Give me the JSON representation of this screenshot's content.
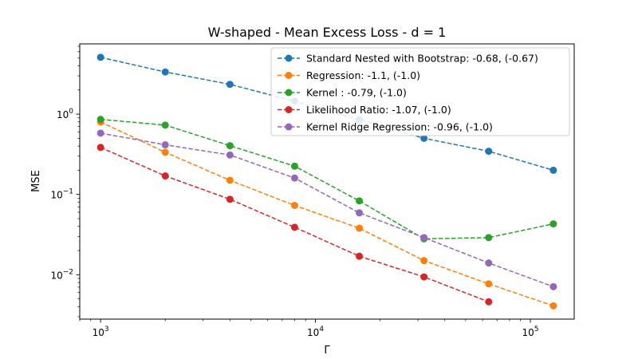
{
  "chart_data": {
    "type": "line",
    "title": "W-shaped - Mean Excess Loss - d = 1",
    "xlabel": "Γ",
    "ylabel": "MSE",
    "x_scale": "log",
    "y_scale": "log",
    "xlim": [
      800,
      160000
    ],
    "ylim": [
      0.0028,
      7.5
    ],
    "x_ticks": [
      {
        "value": 1000,
        "base": "10",
        "exp": "3"
      },
      {
        "value": 10000,
        "base": "10",
        "exp": "4"
      },
      {
        "value": 100000,
        "base": "10",
        "exp": "5"
      }
    ],
    "y_ticks": [
      {
        "value": 1,
        "base": "10",
        "exp": "0"
      },
      {
        "value": 0.1,
        "base": "10",
        "exp": "−1"
      },
      {
        "value": 0.01,
        "base": "10",
        "exp": "−2"
      }
    ],
    "grid": false,
    "legend_position": "top-right",
    "x": [
      1000,
      2000,
      4000,
      8000,
      16000,
      32000,
      64000,
      128000
    ],
    "series": [
      {
        "name": "Standard Nested with Bootstrap: -0.68, (-0.67)",
        "color": "#1f77b4",
        "values": [
          5.1,
          3.35,
          2.35,
          1.45,
          0.85,
          0.5,
          0.345,
          0.2
        ]
      },
      {
        "name": "Regression: -1.1, (-1.0)",
        "color": "#ff7f0e",
        "values": [
          0.8,
          0.335,
          0.15,
          0.073,
          0.038,
          0.015,
          0.0077,
          0.0041
        ]
      },
      {
        "name": "Kernel : -0.79, (-1.0)",
        "color": "#2ca02c",
        "values": [
          0.86,
          0.73,
          0.405,
          0.225,
          0.083,
          0.028,
          0.029,
          0.043
        ]
      },
      {
        "name": "Likelihood Ratio: -1.07, (-1.0)",
        "color": "#d62728",
        "values": [
          0.385,
          0.17,
          0.087,
          0.039,
          0.017,
          0.0094,
          0.0046,
          null
        ]
      },
      {
        "name": "Kernel Ridge Regression: -0.96, (-1.0)",
        "color": "#9467bd",
        "values": [
          0.58,
          0.415,
          0.31,
          0.16,
          0.059,
          0.029,
          0.014,
          0.0071
        ]
      }
    ]
  }
}
